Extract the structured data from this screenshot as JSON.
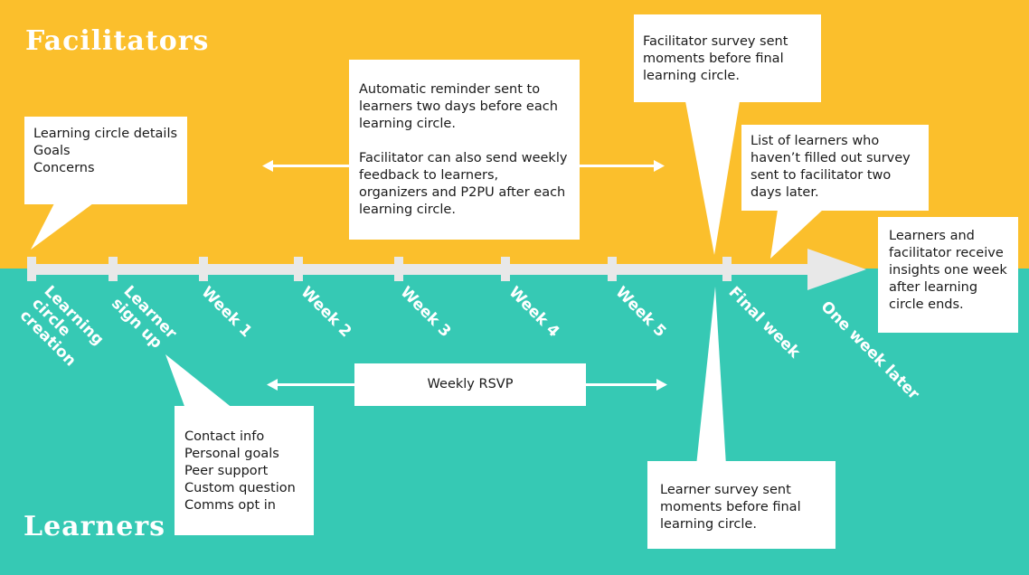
{
  "sections": {
    "top_title": "Facilitators",
    "bottom_title": "Learners"
  },
  "timeline": {
    "ticks": [
      {
        "id": "creation",
        "label": "Learning\ncircle\ncreation"
      },
      {
        "id": "signup",
        "label": "Learner\nsign up"
      },
      {
        "id": "week1",
        "label": "Week 1"
      },
      {
        "id": "week2",
        "label": "Week 2"
      },
      {
        "id": "week3",
        "label": "Week 3"
      },
      {
        "id": "week4",
        "label": "Week 4"
      },
      {
        "id": "week5",
        "label": "Week 5"
      },
      {
        "id": "final",
        "label": "Final week"
      },
      {
        "id": "later",
        "label": "One week later"
      }
    ]
  },
  "facilitator_boxes": {
    "details": "Learning circle details\nGoals\nConcerns",
    "reminder": "Automatic reminder sent to learners two days before each learning circle.\n\nFacilitator can also send weekly feedback to learners, organizers and P2PU after each learning circle.",
    "survey": "Facilitator survey sent moments before final learning circle.",
    "list": "List of learners who haven’t filled out survey sent to facilitator two days later.",
    "insights": "Learners and facilitator receive insights one week after learning circle ends."
  },
  "learner_boxes": {
    "signup": "Contact info\nPersonal goals\nPeer support\nCustom question\nComms opt in",
    "rsvp": "Weekly RSVP",
    "survey": "Learner survey sent moments before final learning circle."
  },
  "colors": {
    "top": "#FBBF2C",
    "bottom": "#36C9B4",
    "axis": "#E8E8E8",
    "box": "#FFFFFF"
  }
}
